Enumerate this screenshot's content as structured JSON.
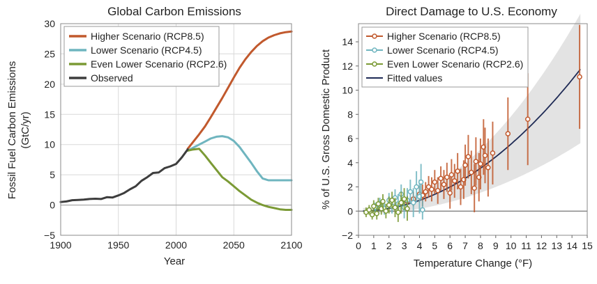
{
  "chart_data": [
    {
      "type": "line",
      "title": "Global Carbon Emissions",
      "xlabel": "Year",
      "ylabel_line1": "Fossil Fuel Carbon Emissions",
      "ylabel_line2": "(GtC/yr)",
      "xlim": [
        1900,
        2100
      ],
      "ylim": [
        -5,
        30
      ],
      "xticks": [
        "1900",
        "1950",
        "2000",
        "2050",
        "2100"
      ],
      "yticks": [
        "30",
        "25",
        "20",
        "15",
        "10",
        "5",
        "0",
        "−5"
      ],
      "legend_position": "top-left",
      "series": [
        {
          "name": "Higher Scenario (RCP8.5)",
          "color": "#c1592d",
          "x": [
            2010,
            2015,
            2020,
            2025,
            2030,
            2035,
            2040,
            2045,
            2050,
            2055,
            2060,
            2065,
            2070,
            2075,
            2080,
            2085,
            2090,
            2095,
            2100
          ],
          "y": [
            9.3,
            10.5,
            11.7,
            13.0,
            14.5,
            16.1,
            17.7,
            19.4,
            21.1,
            22.7,
            24.1,
            25.3,
            26.3,
            27.1,
            27.7,
            28.1,
            28.4,
            28.6,
            28.7
          ]
        },
        {
          "name": "Lower Scenario (RCP4.5)",
          "color": "#6fb5bf",
          "x": [
            2010,
            2015,
            2020,
            2025,
            2030,
            2035,
            2040,
            2045,
            2050,
            2055,
            2060,
            2065,
            2070,
            2075,
            2080,
            2085,
            2090,
            2095,
            2100
          ],
          "y": [
            9.0,
            9.5,
            10.0,
            10.5,
            11.0,
            11.3,
            11.4,
            11.2,
            10.6,
            9.6,
            8.3,
            7.0,
            5.6,
            4.4,
            4.1,
            4.1,
            4.1,
            4.1,
            4.1
          ]
        },
        {
          "name": "Even Lower Scenario (RCP2.6)",
          "color": "#7b9a35",
          "x": [
            2010,
            2015,
            2020,
            2025,
            2030,
            2035,
            2040,
            2045,
            2050,
            2055,
            2060,
            2065,
            2070,
            2075,
            2080,
            2085,
            2090,
            2095,
            2100
          ],
          "y": [
            9.0,
            9.2,
            9.3,
            8.2,
            7.0,
            5.8,
            4.6,
            3.9,
            3.1,
            2.3,
            1.6,
            0.9,
            0.4,
            0.0,
            -0.3,
            -0.5,
            -0.7,
            -0.8,
            -0.8
          ]
        },
        {
          "name": "Observed",
          "color": "#3d3d3d",
          "x": [
            1900,
            1905,
            1910,
            1915,
            1920,
            1925,
            1930,
            1935,
            1940,
            1945,
            1950,
            1955,
            1960,
            1965,
            1970,
            1975,
            1980,
            1985,
            1990,
            1995,
            2000,
            2005,
            2010
          ],
          "y": [
            0.5,
            0.6,
            0.8,
            0.85,
            0.9,
            1.0,
            1.05,
            1.0,
            1.3,
            1.25,
            1.6,
            2.0,
            2.6,
            3.1,
            4.0,
            4.6,
            5.3,
            5.4,
            6.1,
            6.4,
            6.8,
            7.9,
            9.2
          ]
        }
      ]
    },
    {
      "type": "scatter",
      "title": "Direct Damage to U.S. Economy",
      "xlabel": "Temperature Change (°F)",
      "ylabel": "% of U.S. Gross Domestic Product",
      "xlim": [
        0,
        15
      ],
      "ylim": [
        -2,
        15.5
      ],
      "xticks": [
        "0",
        "1",
        "2",
        "3",
        "4",
        "5",
        "6",
        "7",
        "8",
        "9",
        "10",
        "11",
        "12",
        "13",
        "14",
        "15"
      ],
      "yticks": [
        "14",
        "12",
        "10",
        "8",
        "6",
        "4",
        "2",
        "0",
        "−2"
      ],
      "legend_position": "top-left",
      "fit": {
        "name": "Fitted values",
        "color": "#1e2a55",
        "a": 0.0554,
        "b": 2,
        "band_lower_frac": 0.5,
        "band_upper_frac": 0.37,
        "band_color": "#e3e3e3"
      },
      "series": [
        {
          "name": "Higher Scenario (RCP8.5)",
          "color": "#c1592d",
          "points": [
            [
              3.2,
              0.8,
              0.5
            ],
            [
              3.6,
              1.0,
              0.6
            ],
            [
              4.0,
              1.4,
              0.7
            ],
            [
              4.2,
              1.3,
              0.9
            ],
            [
              4.4,
              1.6,
              0.8
            ],
            [
              4.6,
              2.0,
              0.9
            ],
            [
              4.8,
              1.8,
              1.0
            ],
            [
              5.0,
              2.4,
              1.0
            ],
            [
              5.2,
              1.7,
              1.1
            ],
            [
              5.4,
              2.7,
              1.0
            ],
            [
              5.6,
              2.2,
              1.2
            ],
            [
              5.8,
              2.8,
              1.2
            ],
            [
              6.0,
              1.5,
              1.3
            ],
            [
              6.1,
              3.0,
              1.3
            ],
            [
              6.3,
              2.5,
              1.4
            ],
            [
              6.5,
              3.3,
              1.5
            ],
            [
              6.7,
              2.0,
              1.5
            ],
            [
              6.9,
              2.6,
              1.6
            ],
            [
              7.0,
              3.8,
              1.7
            ],
            [
              7.2,
              4.5,
              1.8
            ],
            [
              7.4,
              3.2,
              1.8
            ],
            [
              7.6,
              1.9,
              2.0
            ],
            [
              7.7,
              4.1,
              2.0
            ],
            [
              7.9,
              2.8,
              2.0
            ],
            [
              8.0,
              3.9,
              2.1
            ],
            [
              8.2,
              5.3,
              2.3
            ],
            [
              8.3,
              4.6,
              2.3
            ],
            [
              8.5,
              3.6,
              2.4
            ],
            [
              8.8,
              4.8,
              2.6
            ],
            [
              9.8,
              6.4,
              3.0
            ],
            [
              11.1,
              7.6,
              3.8
            ],
            [
              14.5,
              11.1,
              4.3
            ]
          ]
        },
        {
          "name": "Lower Scenario (RCP4.5)",
          "color": "#6fb5bf",
          "points": [
            [
              1.1,
              0.3,
              0.4
            ],
            [
              1.4,
              0.6,
              0.5
            ],
            [
              1.7,
              0.2,
              0.5
            ],
            [
              2.0,
              0.9,
              0.6
            ],
            [
              2.2,
              0.4,
              0.6
            ],
            [
              2.4,
              1.1,
              0.7
            ],
            [
              2.6,
              0.6,
              0.8
            ],
            [
              2.8,
              1.4,
              0.8
            ],
            [
              3.0,
              0.3,
              0.9
            ],
            [
              3.2,
              0.9,
              1.0
            ],
            [
              3.4,
              1.6,
              1.0
            ],
            [
              3.6,
              0.7,
              1.2
            ],
            [
              3.8,
              2.0,
              1.3
            ],
            [
              4.0,
              1.2,
              1.4
            ],
            [
              4.1,
              2.4,
              1.5
            ],
            [
              4.2,
              0.1,
              0.8
            ]
          ]
        },
        {
          "name": "Even Lower Scenario (RCP2.6)",
          "color": "#7b9a35",
          "points": [
            [
              0.5,
              -0.1,
              0.4
            ],
            [
              0.7,
              0.1,
              0.4
            ],
            [
              0.9,
              -0.3,
              0.4
            ],
            [
              1.0,
              0.4,
              0.5
            ],
            [
              1.2,
              -0.2,
              0.5
            ],
            [
              1.3,
              0.6,
              0.5
            ],
            [
              1.5,
              0.2,
              0.5
            ],
            [
              1.6,
              0.8,
              0.6
            ],
            [
              1.8,
              0.0,
              0.6
            ],
            [
              2.0,
              0.5,
              0.7
            ],
            [
              2.2,
              0.9,
              0.7
            ],
            [
              2.4,
              0.3,
              0.8
            ],
            [
              2.6,
              -0.1,
              0.8
            ],
            [
              2.8,
              0.7,
              0.9
            ],
            [
              3.0,
              1.0,
              0.9
            ],
            [
              3.2,
              0.2,
              1.0
            ]
          ]
        }
      ]
    }
  ]
}
